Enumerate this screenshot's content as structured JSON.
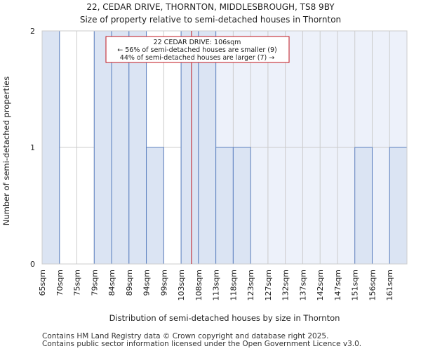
{
  "chart_data": {
    "type": "bar",
    "title_line1": "22, CEDAR DRIVE, THORNTON, MIDDLESBROUGH, TS8 9BY",
    "title_line2": "Size of property relative to semi-detached houses in Thornton",
    "xlabel": "Distribution of semi-detached houses by size in Thornton",
    "ylabel": "Number of semi-detached properties",
    "categories": [
      "65sqm",
      "70sqm",
      "75sqm",
      "79sqm",
      "84sqm",
      "89sqm",
      "94sqm",
      "99sqm",
      "103sqm",
      "108sqm",
      "113sqm",
      "118sqm",
      "123sqm",
      "127sqm",
      "132sqm",
      "137sqm",
      "142sqm",
      "147sqm",
      "151sqm",
      "156sqm",
      "161sqm"
    ],
    "values": [
      2,
      0,
      0,
      2,
      2,
      2,
      1,
      0,
      2,
      2,
      1,
      1,
      0,
      0,
      0,
      0,
      0,
      0,
      1,
      0,
      1
    ],
    "ylim": [
      0,
      2
    ],
    "yticks": [
      0,
      1,
      2
    ],
    "marker_value": 106,
    "annotation": {
      "line1": "22 CEDAR DRIVE: 106sqm",
      "line2": "← 56% of semi-detached houses are smaller (9)",
      "line3": "44% of semi-detached houses are larger (7) →"
    },
    "colors": {
      "bar_fill": "#dbe4f3",
      "bar_stroke": "#5b7fbf",
      "highlight_bg": "#edf1fa",
      "grid": "#cccccc",
      "marker": "#c0141c"
    }
  },
  "footer": {
    "line1": "Contains HM Land Registry data © Crown copyright and database right 2025.",
    "line2": "Contains public sector information licensed under the Open Government Licence v3.0."
  }
}
